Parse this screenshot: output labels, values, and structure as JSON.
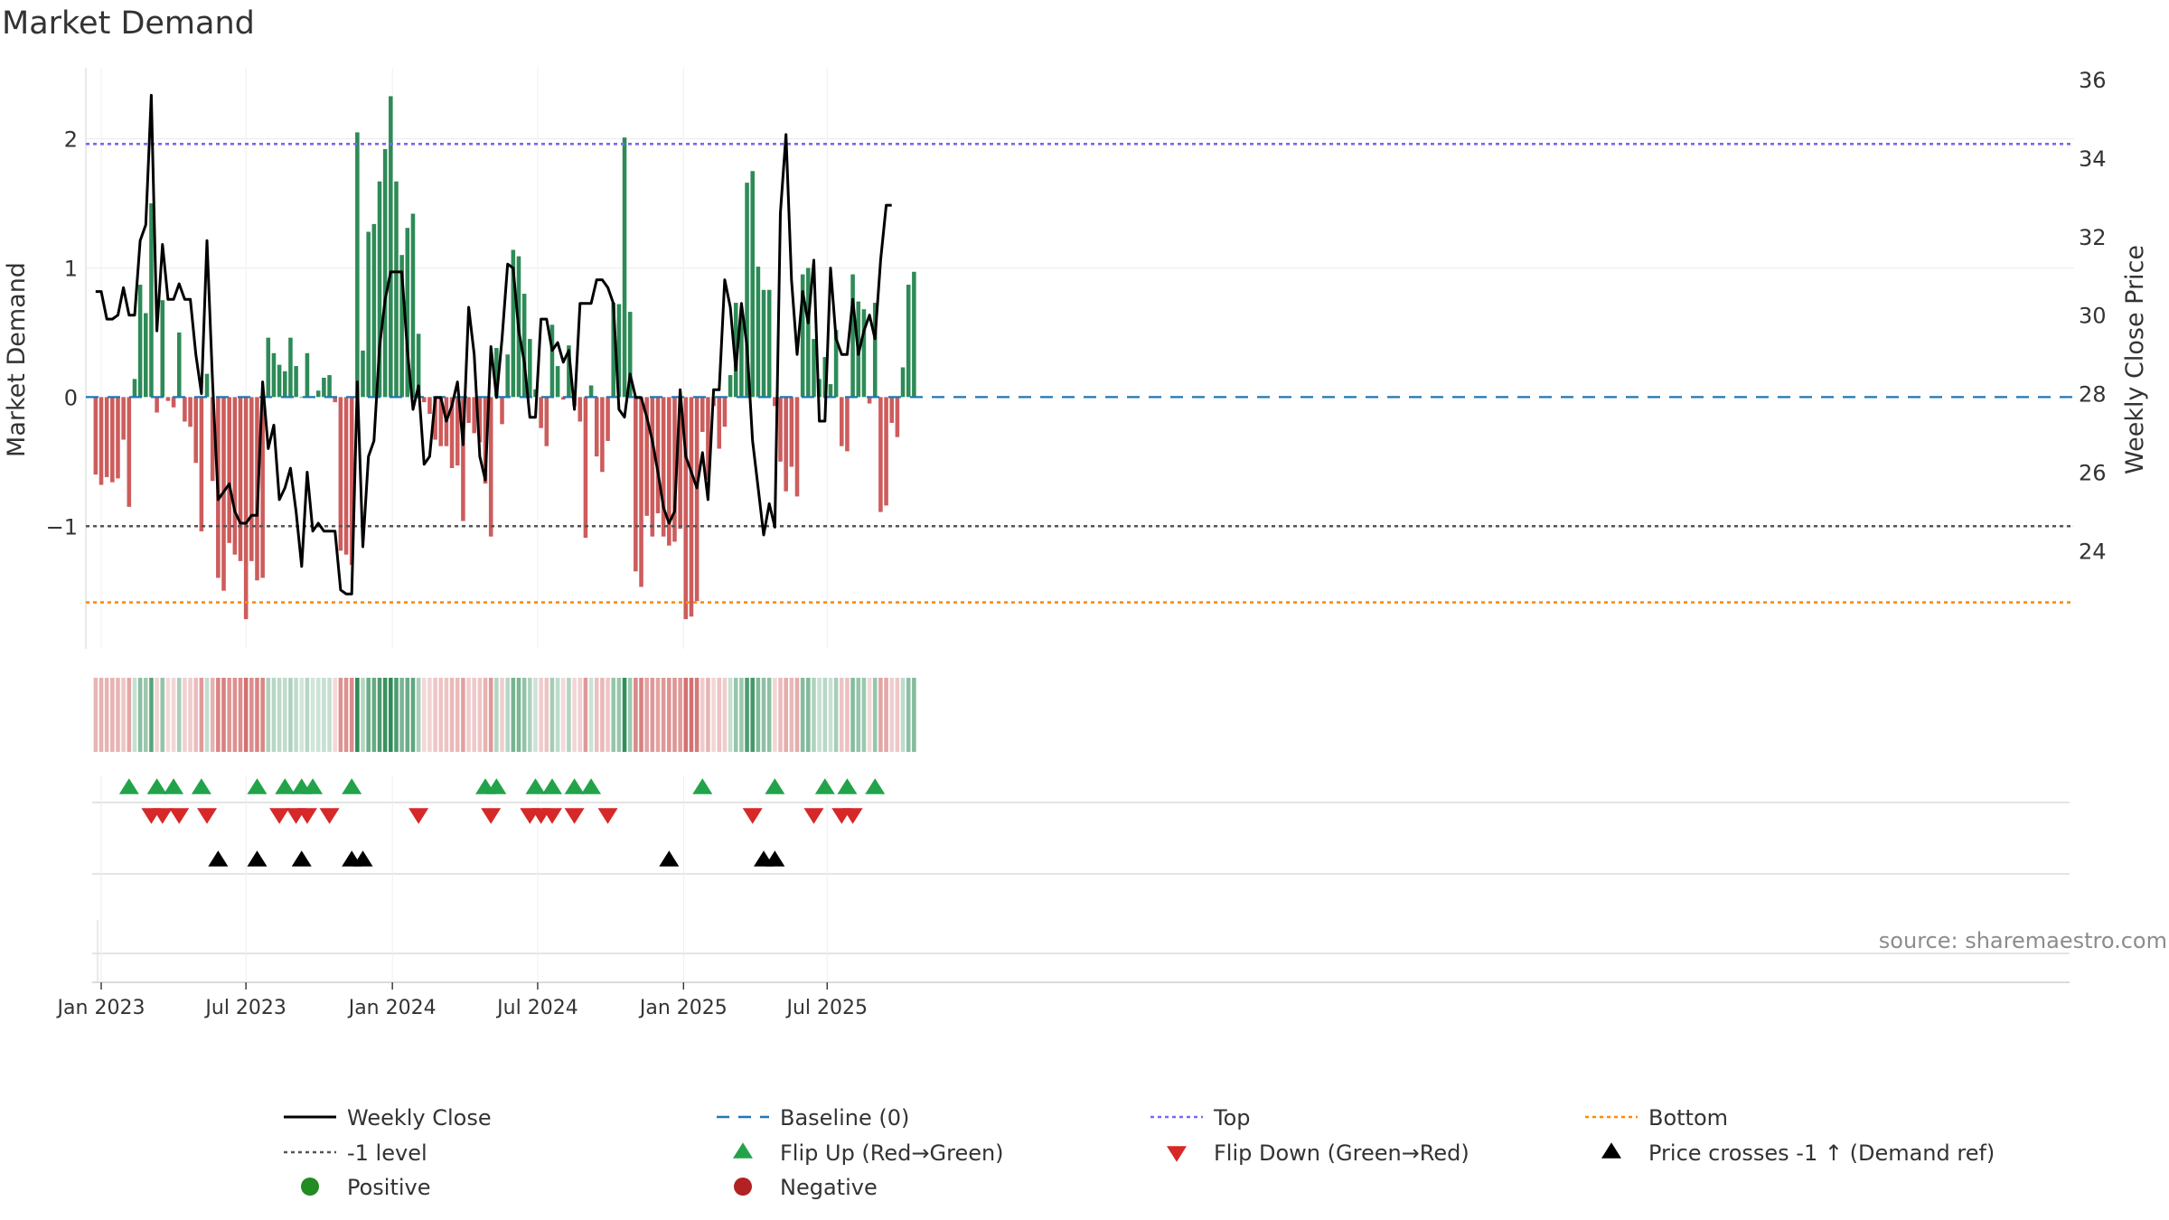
{
  "colors": {
    "positive": "#2e8b57",
    "negative": "#cd5c5c",
    "top": "#7b68ee",
    "bottom": "#ff8c00",
    "minus1": "#555555",
    "baseline": "#1f77b4",
    "close": "#000000",
    "flip_up": "#22a34a",
    "flip_down": "#d62828",
    "cross": "#000000",
    "legend_positive": "#228b22",
    "legend_negative": "#b22222"
  },
  "chart_data": {
    "type": "bar",
    "title": "Market Demand",
    "ylabel_left": "Market Demand",
    "ylabel_right": "Weekly Close Price",
    "ylim_left": [
      -1.95,
      2.55
    ],
    "yticks_left": [
      -1,
      0,
      1,
      2
    ],
    "ytick_labels_left": [
      "−1",
      "0",
      "1",
      "2"
    ],
    "ylim_right": [
      21.5,
      36.3
    ],
    "yticks_right": [
      24,
      26,
      28,
      30,
      32,
      34,
      36
    ],
    "ytick_labels_right": [
      "24",
      "26",
      "28",
      "30",
      "32",
      "34",
      "36"
    ],
    "x_weeks": 146,
    "x_start_offset": -1,
    "x_ticks": [
      {
        "week": 0,
        "label": "Jan 2023"
      },
      {
        "week": 26,
        "label": "Jul 2023"
      },
      {
        "week": 52.3,
        "label": "Jan 2024"
      },
      {
        "week": 78.4,
        "label": "Jul 2024"
      },
      {
        "week": 104.6,
        "label": "Jan 2025"
      },
      {
        "week": 130.4,
        "label": "Jul 2025"
      }
    ],
    "reference_lines": {
      "top": 1.96,
      "minus1": -1.0,
      "bottom": -1.59,
      "baseline": 0
    },
    "demand": [
      -0.6,
      -0.68,
      -0.62,
      -0.66,
      -0.63,
      -0.33,
      -0.85,
      0.14,
      0.87,
      0.65,
      1.5,
      -0.12,
      0.75,
      -0.03,
      -0.08,
      0.5,
      -0.19,
      -0.23,
      -0.51,
      -1.04,
      0.18,
      -0.65,
      -1.4,
      -1.5,
      -1.13,
      -1.22,
      -1.27,
      -1.72,
      -1.27,
      -1.42,
      -1.4,
      0.46,
      0.34,
      0.25,
      0.2,
      0.46,
      0.24,
      0.0,
      0.34,
      0.0,
      0.05,
      0.15,
      0.17,
      -0.04,
      -1.19,
      -1.22,
      -1.3,
      2.05,
      0.36,
      1.28,
      1.34,
      1.67,
      1.92,
      2.33,
      1.67,
      1.1,
      1.31,
      1.42,
      0.49,
      -0.04,
      -0.13,
      -0.33,
      -0.38,
      -0.38,
      -0.55,
      -0.53,
      -0.96,
      -0.2,
      -0.28,
      -0.35,
      -0.67,
      -1.08,
      0.38,
      -0.21,
      0.33,
      1.14,
      1.09,
      0.8,
      0.45,
      0.06,
      -0.24,
      -0.38,
      0.56,
      0.24,
      -0.02,
      0.4,
      -0.07,
      -0.19,
      -1.09,
      0.09,
      -0.46,
      -0.58,
      -0.34,
      0.73,
      0.72,
      2.01,
      0.66,
      -1.35,
      -1.47,
      -0.92,
      -1.08,
      -0.9,
      -1.08,
      -1.15,
      -1.12,
      -1.02,
      -1.72,
      -1.7,
      -1.58,
      -0.27,
      -0.64,
      -0.07,
      -0.4,
      -0.23,
      0.17,
      0.73,
      0.65,
      1.66,
      1.75,
      1.01,
      0.83,
      0.83,
      -0.07,
      -0.5,
      -0.73,
      -0.54,
      -0.77,
      0.95,
      1.0,
      0.45,
      0.14,
      0.31,
      0.1,
      0.52,
      -0.38,
      -0.42,
      0.95,
      0.74,
      0.68,
      -0.05,
      0.73,
      -0.89,
      -0.84,
      -0.2,
      -0.31,
      0.23,
      0.87,
      0.97
    ],
    "close": [
      30.6,
      30.6,
      29.9,
      29.9,
      30.0,
      30.7,
      30.0,
      30.0,
      31.9,
      32.3,
      35.6,
      29.6,
      31.8,
      30.4,
      30.4,
      30.8,
      30.4,
      30.4,
      29.0,
      28.0,
      31.9,
      28.3,
      25.3,
      25.5,
      25.7,
      25.0,
      24.7,
      24.7,
      24.9,
      24.9,
      28.3,
      26.6,
      27.2,
      25.3,
      25.6,
      26.1,
      25.0,
      23.6,
      26.0,
      24.5,
      24.7,
      24.5,
      24.5,
      24.5,
      23.0,
      22.9,
      22.9,
      28.3,
      24.1,
      26.4,
      26.8,
      29.2,
      30.4,
      31.1,
      31.1,
      31.1,
      29.1,
      27.6,
      28.2,
      26.2,
      26.4,
      27.9,
      27.9,
      27.3,
      27.7,
      28.3,
      26.7,
      30.2,
      29.0,
      26.4,
      25.8,
      29.2,
      27.9,
      29.4,
      31.3,
      31.2,
      29.6,
      28.8,
      27.4,
      27.4,
      29.9,
      29.9,
      29.1,
      29.3,
      28.8,
      29.1,
      27.6,
      30.3,
      30.3,
      30.3,
      30.9,
      30.9,
      30.7,
      30.3,
      27.6,
      27.4,
      28.5,
      27.9,
      27.9,
      27.4,
      26.8,
      26.0,
      25.1,
      24.7,
      25.0,
      28.1,
      26.4,
      26.0,
      25.6,
      26.5,
      25.3,
      28.1,
      28.1,
      30.9,
      30.2,
      28.6,
      30.3,
      29.2,
      26.8,
      25.6,
      24.4,
      25.2,
      24.6,
      32.6,
      34.6,
      30.9,
      29.0,
      30.6,
      29.8,
      31.4,
      27.3,
      27.3,
      31.2,
      29.4,
      29.0,
      29.0,
      30.4,
      29.0,
      29.6,
      30.0,
      29.4,
      31.4,
      32.8,
      32.8
    ],
    "flip_up_weeks": [
      6,
      11,
      14,
      19,
      29,
      34,
      37,
      39,
      46,
      70,
      72,
      79,
      82,
      86,
      89,
      109,
      122,
      131,
      135,
      140
    ],
    "flip_down_weeks": [
      10,
      12,
      15,
      20,
      33,
      36,
      38,
      42,
      58,
      71,
      78,
      80,
      82,
      86,
      92,
      118,
      129,
      134,
      136
    ],
    "cross_weeks": [
      22,
      29,
      37,
      46,
      48,
      103,
      120,
      122
    ],
    "source": "source: sharemaestro.com"
  },
  "legend": [
    {
      "label": "Weekly Close",
      "kind": "line-solid",
      "color_key": "close"
    },
    {
      "label": "Baseline (0)",
      "kind": "line-dashed",
      "color_key": "baseline"
    },
    {
      "label": "Top",
      "kind": "line-dotted",
      "color_key": "top"
    },
    {
      "label": "Bottom",
      "kind": "line-dotted",
      "color_key": "bottom"
    },
    {
      "label": "-1 level",
      "kind": "line-dotted",
      "color_key": "minus1"
    },
    {
      "label": "Flip Up (Red→Green)",
      "kind": "tri-up",
      "color_key": "flip_up"
    },
    {
      "label": "Flip Down (Green→Red)",
      "kind": "tri-down",
      "color_key": "flip_down"
    },
    {
      "label": "Price crosses -1 ↑ (Demand ref)",
      "kind": "tri-up",
      "color_key": "cross"
    },
    {
      "label": "Positive",
      "kind": "dot",
      "color_key": "legend_positive"
    },
    {
      "label": "Negative",
      "kind": "dot",
      "color_key": "legend_negative"
    }
  ]
}
